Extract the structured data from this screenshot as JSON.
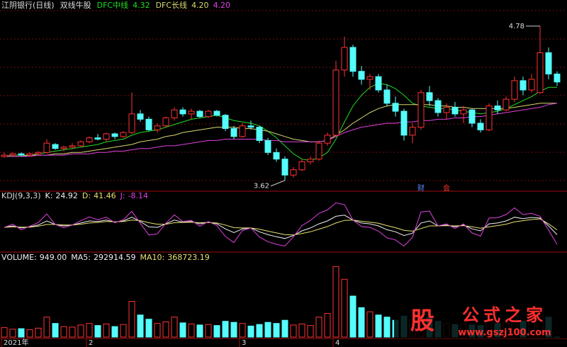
{
  "chart_data": [
    {
      "type": "candlestick",
      "title": "江阴银行(日线)",
      "subtitle": "双线牛股",
      "categories": [
        "2021年",
        null,
        null,
        null,
        null,
        null,
        null,
        null,
        null,
        null,
        "2",
        null,
        null,
        null,
        null,
        null,
        null,
        null,
        null,
        null,
        null,
        null,
        null,
        null,
        null,
        null,
        null,
        null,
        "3",
        null,
        null,
        null,
        null,
        null,
        null,
        null,
        null,
        null,
        null,
        "4",
        null,
        null,
        null,
        null,
        null,
        null,
        null,
        null,
        null,
        null,
        null,
        null,
        null,
        null,
        null,
        null,
        null,
        null,
        null,
        null,
        null,
        null,
        null,
        null,
        null,
        null
      ],
      "open": [
        3.8,
        3.81,
        3.82,
        3.81,
        3.82,
        3.83,
        3.89,
        3.86,
        3.87,
        3.88,
        3.91,
        3.94,
        3.93,
        3.97,
        3.95,
        3.98,
        4.12,
        4.08,
        4.0,
        4.03,
        4.09,
        4.15,
        4.12,
        4.14,
        4.1,
        4.14,
        4.11,
        4.01,
        3.95,
        4.03,
        4.02,
        3.92,
        3.83,
        3.78,
        3.66,
        3.7,
        3.76,
        3.78,
        3.9,
        3.96,
        4.45,
        4.62,
        4.44,
        4.38,
        4.4,
        4.3,
        4.2,
        4.14,
        3.96,
        4.02,
        4.28,
        4.22,
        4.13,
        4.17,
        4.12,
        4.15,
        4.05,
        4.0,
        4.18,
        4.15,
        4.23,
        4.37,
        4.3,
        4.28,
        4.58,
        4.42
      ],
      "high": [
        3.83,
        3.83,
        3.83,
        3.83,
        3.84,
        3.93,
        3.9,
        3.88,
        3.9,
        3.92,
        3.95,
        3.97,
        3.98,
        3.98,
        3.99,
        4.28,
        4.15,
        4.1,
        4.05,
        4.1,
        4.17,
        4.17,
        4.16,
        4.15,
        4.15,
        4.15,
        4.12,
        4.03,
        4.05,
        4.07,
        4.03,
        3.94,
        3.86,
        3.8,
        3.72,
        3.78,
        3.8,
        3.92,
        3.98,
        4.52,
        4.7,
        4.64,
        4.48,
        4.42,
        4.42,
        4.34,
        4.25,
        4.16,
        4.05,
        4.3,
        4.33,
        4.24,
        4.2,
        4.21,
        4.18,
        4.16,
        4.08,
        4.2,
        4.22,
        4.25,
        4.4,
        4.4,
        4.42,
        4.78,
        4.62,
        4.44
      ],
      "low": [
        3.79,
        3.8,
        3.8,
        3.8,
        3.81,
        3.82,
        3.85,
        3.84,
        3.86,
        3.87,
        3.9,
        3.92,
        3.91,
        3.93,
        3.94,
        3.97,
        4.06,
        3.99,
        3.98,
        4.02,
        4.07,
        4.1,
        4.08,
        4.09,
        4.09,
        4.1,
        3.99,
        3.93,
        3.94,
        4.0,
        3.9,
        3.81,
        3.76,
        3.62,
        3.64,
        3.69,
        3.74,
        3.77,
        3.88,
        3.95,
        4.4,
        4.4,
        4.34,
        4.3,
        4.28,
        4.18,
        4.1,
        3.92,
        3.9,
        4.0,
        4.18,
        4.1,
        4.08,
        4.1,
        4.05,
        4.02,
        3.98,
        3.99,
        4.12,
        4.14,
        4.21,
        4.26,
        4.28,
        4.27,
        4.38,
        4.33
      ],
      "close": [
        3.81,
        3.82,
        3.81,
        3.82,
        3.83,
        3.9,
        3.86,
        3.87,
        3.88,
        3.91,
        3.94,
        3.93,
        3.97,
        3.95,
        3.98,
        4.12,
        4.08,
        4.0,
        4.03,
        4.09,
        4.15,
        4.12,
        4.14,
        4.1,
        4.14,
        4.11,
        4.01,
        3.95,
        4.03,
        4.02,
        3.92,
        3.83,
        3.78,
        3.66,
        3.7,
        3.76,
        3.78,
        3.9,
        3.96,
        4.45,
        4.62,
        4.44,
        4.38,
        4.4,
        4.3,
        4.2,
        4.14,
        3.96,
        4.02,
        4.28,
        4.22,
        4.13,
        4.17,
        4.12,
        4.15,
        4.05,
        4.0,
        4.18,
        4.15,
        4.23,
        4.37,
        4.3,
        4.38,
        4.58,
        4.42,
        4.36
      ],
      "ylim": [
        3.56,
        4.87
      ],
      "up_color": "#ff3232",
      "down_color": "#54fcfc",
      "series": [
        {
          "name": "DFC中线",
          "color": "#22dd22",
          "value_label": "4.32",
          "values": [
            3.8,
            3.81,
            3.81,
            3.81,
            3.82,
            3.83,
            3.84,
            3.85,
            3.86,
            3.87,
            3.88,
            3.89,
            3.91,
            3.92,
            3.93,
            3.96,
            3.98,
            3.99,
            4.0,
            4.02,
            4.04,
            4.06,
            4.08,
            4.09,
            4.1,
            4.11,
            4.09,
            4.07,
            4.06,
            4.05,
            4.03,
            3.99,
            3.94,
            3.88,
            3.82,
            3.78,
            3.77,
            3.79,
            3.83,
            3.93,
            4.06,
            4.18,
            4.26,
            4.32,
            4.35,
            4.34,
            4.31,
            4.26,
            4.2,
            4.18,
            4.17,
            4.16,
            4.16,
            4.15,
            4.14,
            4.13,
            4.12,
            4.13,
            4.14,
            4.16,
            4.19,
            4.22,
            4.25,
            4.29,
            4.32,
            4.32
          ]
        },
        {
          "name": "DFC长线",
          "color": "#d8d870",
          "value_label": "4.20",
          "values": [
            3.8,
            3.8,
            3.8,
            3.81,
            3.81,
            3.81,
            3.82,
            3.82,
            3.83,
            3.83,
            3.84,
            3.85,
            3.86,
            3.87,
            3.88,
            3.89,
            3.91,
            3.92,
            3.93,
            3.95,
            3.96,
            3.98,
            3.99,
            4.0,
            4.01,
            4.02,
            4.02,
            4.02,
            4.01,
            4.01,
            4.0,
            3.99,
            3.97,
            3.95,
            3.93,
            3.92,
            3.91,
            3.91,
            3.92,
            3.96,
            4.0,
            4.05,
            4.09,
            4.13,
            4.16,
            4.18,
            4.19,
            4.19,
            4.19,
            4.19,
            4.19,
            4.18,
            4.18,
            4.17,
            4.17,
            4.16,
            4.16,
            4.16,
            4.16,
            4.16,
            4.17,
            4.18,
            4.19,
            4.2,
            4.2,
            4.2
          ]
        },
        {
          "color": "#e040e0",
          "value_label": "4.20",
          "values": [
            3.8,
            3.8,
            3.8,
            3.8,
            3.81,
            3.81,
            3.81,
            3.81,
            3.82,
            3.82,
            3.82,
            3.83,
            3.83,
            3.84,
            3.84,
            3.85,
            3.86,
            3.86,
            3.87,
            3.88,
            3.88,
            3.89,
            3.9,
            3.91,
            3.92,
            3.92,
            3.93,
            3.93,
            3.93,
            3.93,
            3.93,
            3.92,
            3.92,
            3.91,
            3.91,
            3.91,
            3.91,
            3.91,
            3.92,
            3.95,
            3.98,
            4.0,
            4.02,
            4.03,
            4.04,
            4.05,
            4.05,
            4.06,
            4.06,
            4.07,
            4.07,
            4.08,
            4.08,
            4.09,
            4.09,
            4.1,
            4.1,
            4.11,
            4.12,
            4.13,
            4.14,
            4.15,
            4.16,
            4.17,
            4.19,
            4.2
          ]
        }
      ],
      "annotations": [
        {
          "text": "4.78",
          "candle": 63,
          "at": "high"
        },
        {
          "text": "3.62",
          "candle": 33,
          "at": "low"
        }
      ],
      "markers": [
        {
          "text": "财",
          "candle": 49,
          "color": "#5a8cff"
        },
        {
          "text": "会",
          "candle": 52,
          "color": "#ff3232"
        }
      ]
    },
    {
      "type": "line",
      "title": "KDJ(9,3,3)",
      "ylim": [
        -25,
        140
      ],
      "series": [
        {
          "name": "K:",
          "color": "#f0f0f0",
          "values": [
            50,
            55,
            48,
            52,
            58,
            72,
            60,
            55,
            58,
            65,
            72,
            70,
            75,
            68,
            72,
            85,
            70,
            52,
            50,
            62,
            75,
            68,
            70,
            62,
            68,
            62,
            45,
            32,
            45,
            48,
            35,
            25,
            18,
            12,
            22,
            38,
            48,
            62,
            72,
            88,
            92,
            75,
            65,
            62,
            55,
            42,
            35,
            22,
            30,
            65,
            72,
            55,
            58,
            52,
            58,
            45,
            38,
            62,
            65,
            72,
            85,
            80,
            84,
            82,
            55,
            24.92
          ]
        },
        {
          "name": "D:",
          "color": "#e8e070",
          "values": [
            50,
            52,
            51,
            51,
            54,
            60,
            60,
            58,
            58,
            61,
            65,
            67,
            70,
            69,
            70,
            75,
            73,
            66,
            61,
            61,
            66,
            67,
            68,
            66,
            67,
            65,
            58,
            49,
            48,
            48,
            44,
            37,
            31,
            25,
            24,
            29,
            35,
            44,
            53,
            65,
            74,
            75,
            71,
            68,
            64,
            56,
            49,
            40,
            37,
            46,
            55,
            55,
            56,
            55,
            56,
            52,
            47,
            52,
            56,
            61,
            69,
            73,
            77,
            79,
            62,
            41.46
          ]
        },
        {
          "name": "J:",
          "color": "#e040e0",
          "values": [
            50,
            61,
            42,
            54,
            66,
            96,
            60,
            49,
            58,
            73,
            86,
            76,
            85,
            66,
            76,
            105,
            64,
            24,
            28,
            64,
            93,
            70,
            74,
            54,
            70,
            56,
            19,
            -2,
            39,
            48,
            17,
            1,
            -8,
            -14,
            18,
            56,
            74,
            98,
            110,
            134,
            128,
            75,
            53,
            50,
            37,
            14,
            7,
            -14,
            16,
            103,
            106,
            55,
            62,
            46,
            62,
            31,
            20,
            82,
            83,
            94,
            117,
            94,
            98,
            88,
            41,
            -8.14
          ]
        }
      ]
    },
    {
      "type": "volume",
      "ylim": [
        0,
        1400000
      ],
      "readouts": [
        {
          "name": "VOLUME:",
          "label": "949.00",
          "color": "#f0f0f0"
        },
        {
          "name": "MA5:",
          "value": 292914.59,
          "color": "#f0f0f0"
        },
        {
          "name": "MA10:",
          "value": 368723.19,
          "color": "#e8e070"
        }
      ],
      "values": [
        180000,
        150000,
        160000,
        140000,
        170000,
        380000,
        260000,
        200000,
        190000,
        230000,
        260000,
        220000,
        250000,
        200000,
        240000,
        680000,
        420000,
        340000,
        260000,
        290000,
        380000,
        270000,
        250000,
        230000,
        240000,
        220000,
        300000,
        280000,
        260000,
        210000,
        240000,
        280000,
        260000,
        320000,
        230000,
        250000,
        220000,
        380000,
        450000,
        1340000,
        1100000,
        780000,
        560000,
        480000,
        420000,
        380000,
        320000,
        400000,
        340000,
        520000,
        380000,
        300000,
        260000,
        240000,
        250000,
        230000,
        220000,
        300000,
        260000,
        280000,
        420000,
        300000,
        340000,
        560000,
        380000,
        949
      ]
    }
  ],
  "watermark": {
    "logo": "股",
    "name": "公式之家",
    "url": "www.gszj100.com"
  }
}
